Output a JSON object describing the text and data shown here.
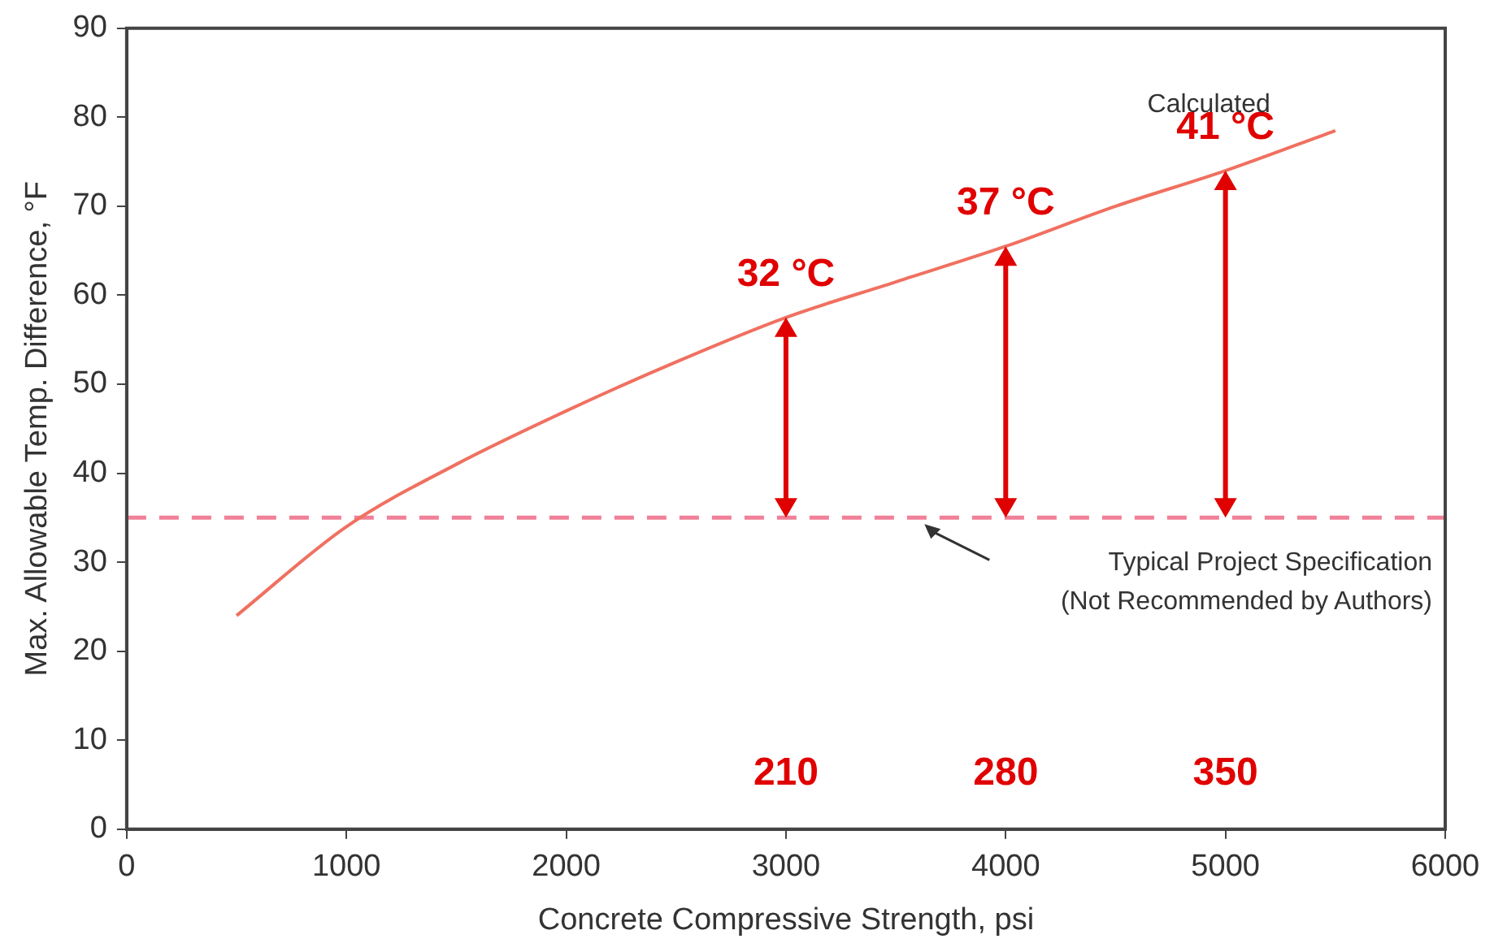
{
  "chart_data": {
    "type": "line",
    "xlabel": "Concrete Compressive Strength, psi",
    "ylabel": "Max. Allowable Temp. Difference, °F",
    "series": [
      {
        "name": "Calculated",
        "color": "#f07060",
        "x": [
          500,
          1000,
          1500,
          2000,
          2500,
          3000,
          3500,
          4000,
          4500,
          5000,
          5500
        ],
        "values": [
          24,
          34,
          41,
          47,
          52.5,
          57.5,
          61.5,
          65.5,
          70,
          74,
          78.5
        ]
      }
    ],
    "xlim": [
      0,
      6000
    ],
    "xticks": [
      0,
      1000,
      2000,
      3000,
      4000,
      5000,
      6000
    ],
    "ylim": [
      0,
      90
    ],
    "yticks": [
      0,
      10,
      20,
      30,
      40,
      50,
      60,
      70,
      80,
      90
    ],
    "ref_lines": [
      {
        "axis": "y",
        "value": 35,
        "label": "Typical Project Specification\n(Not Recommended by Authors)",
        "color": "#f08098",
        "line_style": "dashed"
      }
    ],
    "annotations": [
      {
        "text": "32 °C",
        "x": 3000,
        "y": 57.5
      },
      {
        "text": "37 °C",
        "x": 4000,
        "y": 65.5
      },
      {
        "text": "41 °C",
        "x": 5000,
        "y": 74
      },
      "210",
      "280",
      "350"
    ],
    "grid": false,
    "legend": false,
    "marker": "none",
    "line_style": "solid"
  }
}
